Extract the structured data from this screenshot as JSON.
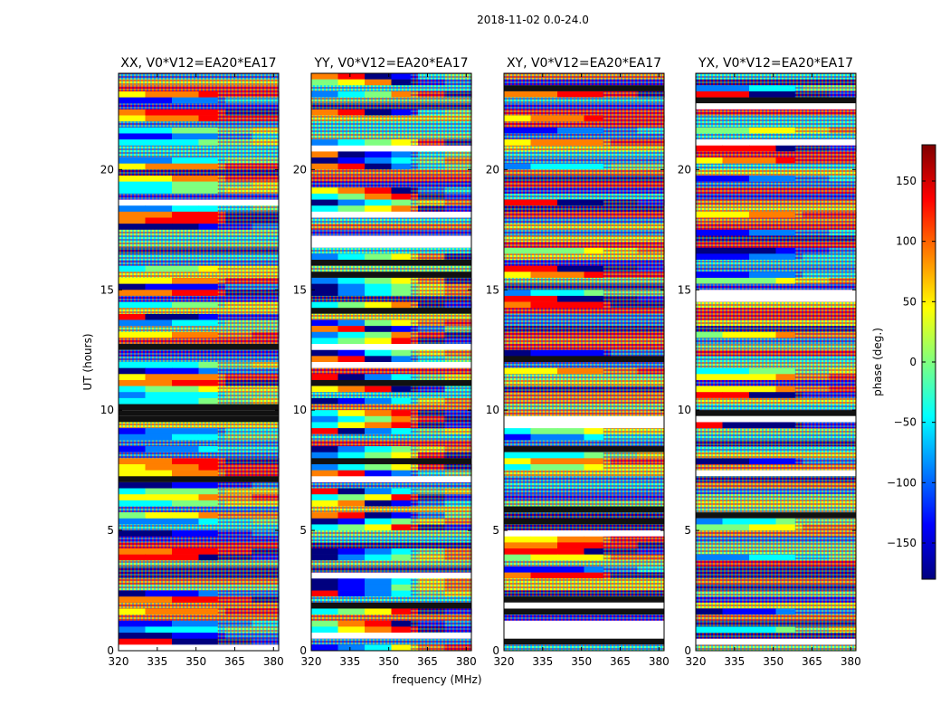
{
  "figure_title": "2018-11-02 0.0-24.0",
  "chart_data": {
    "type": "heatmap",
    "description": "Waterfall of visibility phase versus frequency and UT time for four polarization products of baseline V0*V12=EA20*EA17",
    "xlabel": "frequency (MHz)",
    "ylabel": "UT (hours)",
    "xlim": [
      320,
      382
    ],
    "ylim": [
      0,
      24
    ],
    "xticks": [
      320,
      335,
      350,
      365,
      380
    ],
    "yticks": [
      0,
      5,
      10,
      15,
      20
    ],
    "panels": [
      {
        "title": "XX, V0*V12=EA20*EA17",
        "pol": "XX"
      },
      {
        "title": "YY, V0*V12=EA20*EA17",
        "pol": "YY"
      },
      {
        "title": "XY, V0*V12=EA20*EA17",
        "pol": "XY"
      },
      {
        "title": "YX, V0*V12=EA20*EA17",
        "pol": "YX"
      }
    ],
    "colorbar": {
      "label": "phase (deg.)",
      "range": [
        -180,
        180
      ],
      "ticks": [
        150,
        100,
        50,
        0,
        -50,
        -100,
        -150
      ],
      "tick_labels": [
        "150",
        "100",
        "50",
        "0",
        "−50",
        "−100",
        "−150"
      ],
      "colormap": "jet",
      "stops": [
        "#00007f",
        "#0000ff",
        "#007fff",
        "#00ffff",
        "#7fff7f",
        "#ffff00",
        "#ff7f00",
        "#ff0000",
        "#7f0000"
      ]
    }
  }
}
